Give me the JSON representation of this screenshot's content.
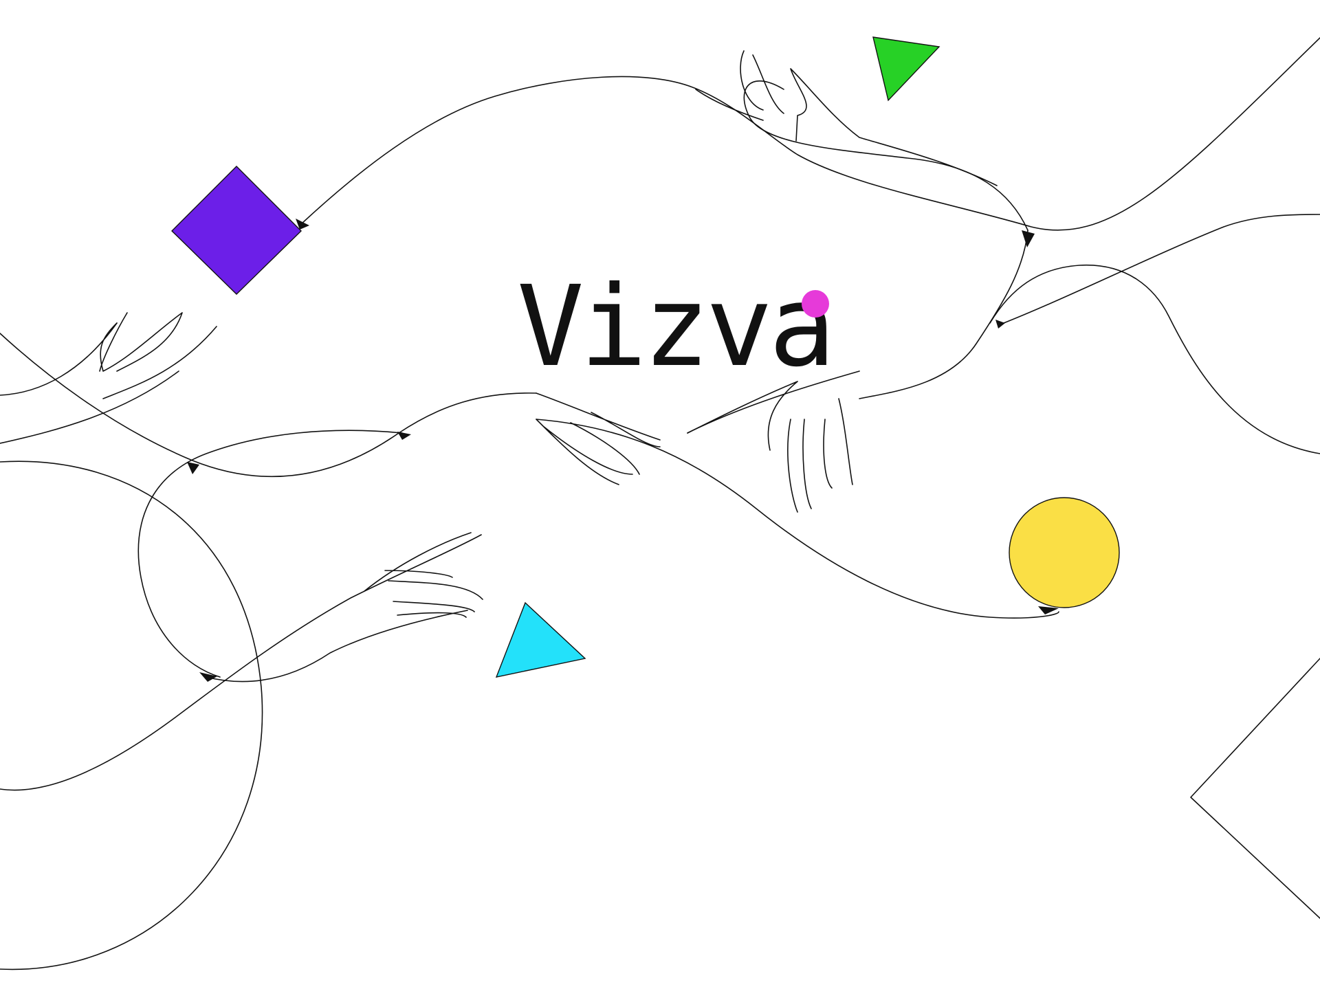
{
  "brand": {
    "name": "Vizva",
    "dot_color": "#e63ad9"
  },
  "shapes": {
    "diamond": {
      "name": "purple-diamond",
      "color": "#6c1fe8"
    },
    "triangle_top": {
      "name": "green-triangle",
      "color": "#27d126"
    },
    "triangle_bottom": {
      "name": "cyan-triangle",
      "color": "#23e1fa"
    },
    "circle": {
      "name": "yellow-circle",
      "color": "#fadf45"
    }
  }
}
